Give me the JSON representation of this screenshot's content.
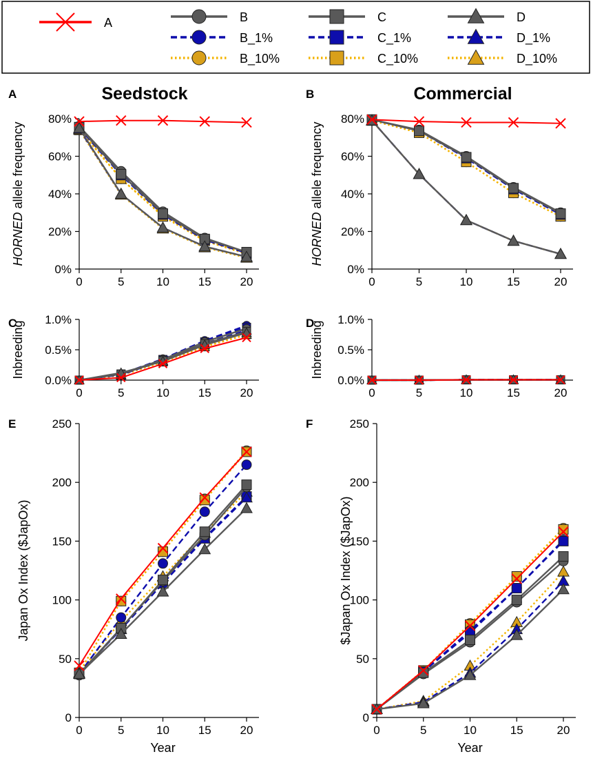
{
  "legend": {
    "entries": [
      {
        "key": "A",
        "label": "A",
        "color": "#ff0000",
        "marker": "x",
        "dash": "solid"
      },
      {
        "key": "B",
        "label": "B",
        "color": "#595959",
        "fill": "#595959",
        "marker": "circle",
        "dash": "solid"
      },
      {
        "key": "C",
        "label": "C",
        "color": "#595959",
        "fill": "#595959",
        "marker": "square",
        "dash": "solid"
      },
      {
        "key": "D",
        "label": "D",
        "color": "#595959",
        "fill": "#595959",
        "marker": "triangle",
        "dash": "solid"
      },
      {
        "key": "B_1%",
        "label": "B_1%",
        "color": "#0d0dac",
        "fill": "#0d0dac",
        "marker": "circle",
        "dash": "dash"
      },
      {
        "key": "C_1%",
        "label": "C_1%",
        "color": "#0d0dac",
        "fill": "#0d0dac",
        "marker": "square",
        "dash": "dash"
      },
      {
        "key": "D_1%",
        "label": "D_1%",
        "color": "#0d0dac",
        "fill": "#0d0dac",
        "marker": "triangle",
        "dash": "dash"
      },
      {
        "key": "B_10%",
        "label": "B_10%",
        "color": "#f4b400",
        "fill": "#d9a01a",
        "marker": "circle",
        "dash": "dot"
      },
      {
        "key": "C_10%",
        "label": "C_10%",
        "color": "#f4b400",
        "fill": "#d9a01a",
        "marker": "square",
        "dash": "dot"
      },
      {
        "key": "D_10%",
        "label": "D_10%",
        "color": "#f4b400",
        "fill": "#d9a01a",
        "marker": "triangle",
        "dash": "dot"
      }
    ]
  },
  "column_titles": [
    "Seedstock",
    "Commercial"
  ],
  "chart_data": [
    {
      "panel": "A",
      "type": "line",
      "xlabel": "",
      "ylabel_italic": "HORNED",
      "ylabel_rest": " allele frequency",
      "x": [
        0,
        5,
        10,
        15,
        20
      ],
      "ylim": [
        0,
        0.8
      ],
      "yticks": [
        0,
        0.2,
        0.4,
        0.6,
        0.8
      ],
      "ytick_labels": [
        "0%",
        "20%",
        "40%",
        "60%",
        "80%"
      ],
      "xtick_labels": [
        "0",
        "5",
        "10",
        "15",
        "20"
      ],
      "series": [
        {
          "name": "B_10%",
          "values": [
            0.745,
            0.48,
            0.285,
            0.15,
            0.085
          ]
        },
        {
          "name": "C_10%",
          "values": [
            0.74,
            0.48,
            0.28,
            0.15,
            0.08
          ]
        },
        {
          "name": "D_10%",
          "values": [
            0.74,
            0.395,
            0.215,
            0.115,
            0.06
          ]
        },
        {
          "name": "B_1%",
          "values": [
            0.755,
            0.51,
            0.3,
            0.16,
            0.09
          ]
        },
        {
          "name": "C_1%",
          "values": [
            0.75,
            0.5,
            0.29,
            0.155,
            0.085
          ]
        },
        {
          "name": "D_1%",
          "values": [
            0.745,
            0.4,
            0.22,
            0.12,
            0.065
          ]
        },
        {
          "name": "B",
          "values": [
            0.76,
            0.52,
            0.305,
            0.165,
            0.09
          ]
        },
        {
          "name": "C",
          "values": [
            0.755,
            0.505,
            0.295,
            0.16,
            0.09
          ]
        },
        {
          "name": "D",
          "values": [
            0.75,
            0.4,
            0.22,
            0.12,
            0.065
          ]
        },
        {
          "name": "A",
          "values": [
            0.785,
            0.79,
            0.79,
            0.785,
            0.78
          ]
        }
      ]
    },
    {
      "panel": "B",
      "type": "line",
      "xlabel": "",
      "ylabel_italic": "HORNED",
      "ylabel_rest": " allele frequency",
      "x": [
        0,
        5,
        10,
        15,
        20
      ],
      "ylim": [
        0,
        0.8
      ],
      "yticks": [
        0,
        0.2,
        0.4,
        0.6,
        0.8
      ],
      "ytick_labels": [
        "0%",
        "20%",
        "40%",
        "60%",
        "80%"
      ],
      "xtick_labels": [
        "0",
        "5",
        "10",
        "15",
        "20"
      ],
      "series": [
        {
          "name": "B_10%",
          "values": [
            0.79,
            0.725,
            0.57,
            0.405,
            0.28
          ]
        },
        {
          "name": "C_10%",
          "values": [
            0.79,
            0.725,
            0.57,
            0.405,
            0.28
          ]
        },
        {
          "name": "D_10%",
          "values": [
            0.79,
            0.505,
            0.26,
            0.15,
            0.08
          ]
        },
        {
          "name": "B_1%",
          "values": [
            0.795,
            0.735,
            0.595,
            0.43,
            0.295
          ]
        },
        {
          "name": "C_1%",
          "values": [
            0.795,
            0.735,
            0.59,
            0.425,
            0.29
          ]
        },
        {
          "name": "D_1%",
          "values": [
            0.79,
            0.505,
            0.26,
            0.15,
            0.08
          ]
        },
        {
          "name": "B",
          "values": [
            0.795,
            0.74,
            0.6,
            0.435,
            0.3
          ]
        },
        {
          "name": "C",
          "values": [
            0.795,
            0.735,
            0.595,
            0.43,
            0.295
          ]
        },
        {
          "name": "D",
          "values": [
            0.79,
            0.505,
            0.26,
            0.15,
            0.08
          ]
        },
        {
          "name": "A",
          "values": [
            0.795,
            0.785,
            0.78,
            0.78,
            0.775
          ]
        }
      ]
    },
    {
      "panel": "C",
      "type": "line",
      "xlabel": "",
      "ylabel": "Inbreeding",
      "x": [
        0,
        5,
        10,
        15,
        20
      ],
      "ylim": [
        0,
        0.01
      ],
      "yticks": [
        0,
        0.005,
        0.01
      ],
      "ytick_labels": [
        "0.0%",
        "0.5%",
        "1.0%"
      ],
      "xtick_labels": [
        "0",
        "5",
        "10",
        "15",
        "20"
      ],
      "series": [
        {
          "name": "B_10%",
          "values": [
            0,
            0.0008,
            0.003,
            0.0055,
            0.0075
          ]
        },
        {
          "name": "C_10%",
          "values": [
            0,
            0.0008,
            0.003,
            0.0055,
            0.0075
          ]
        },
        {
          "name": "D_10%",
          "values": [
            0,
            0.0008,
            0.003,
            0.0055,
            0.0075
          ]
        },
        {
          "name": "B_1%",
          "values": [
            0,
            0.001,
            0.0035,
            0.0065,
            0.009
          ]
        },
        {
          "name": "C_1%",
          "values": [
            0,
            0.001,
            0.0034,
            0.0063,
            0.0087
          ]
        },
        {
          "name": "D_1%",
          "values": [
            0,
            0.0009,
            0.0032,
            0.006,
            0.0082
          ]
        },
        {
          "name": "B",
          "values": [
            0,
            0.001,
            0.0034,
            0.0063,
            0.0085
          ]
        },
        {
          "name": "C",
          "values": [
            0,
            0.001,
            0.0032,
            0.006,
            0.008
          ]
        },
        {
          "name": "D",
          "values": [
            0,
            0.0012,
            0.0031,
            0.0058,
            0.0078
          ]
        },
        {
          "name": "A",
          "values": [
            0,
            0.0004,
            0.0027,
            0.0052,
            0.007
          ]
        }
      ]
    },
    {
      "panel": "D",
      "type": "line",
      "xlabel": "",
      "ylabel": "Inbreeding",
      "x": [
        0,
        5,
        10,
        15,
        20
      ],
      "ylim": [
        0,
        0.01
      ],
      "yticks": [
        0,
        0.005,
        0.01
      ],
      "ytick_labels": [
        "0.0%",
        "0.5%",
        "1.0%"
      ],
      "xtick_labels": [
        "0",
        "5",
        "10",
        "15",
        "20"
      ],
      "series": [
        {
          "name": "B_10%",
          "values": [
            0,
            0,
            5e-05,
            5e-05,
            5e-05
          ]
        },
        {
          "name": "C_10%",
          "values": [
            0,
            0,
            5e-05,
            5e-05,
            5e-05
          ]
        },
        {
          "name": "D_10%",
          "values": [
            0,
            0,
            5e-05,
            5e-05,
            5e-05
          ]
        },
        {
          "name": "B_1%",
          "values": [
            0,
            0,
            5e-05,
            5e-05,
            5e-05
          ]
        },
        {
          "name": "C_1%",
          "values": [
            0,
            0,
            5e-05,
            5e-05,
            5e-05
          ]
        },
        {
          "name": "D_1%",
          "values": [
            0,
            0,
            5e-05,
            5e-05,
            5e-05
          ]
        },
        {
          "name": "B",
          "values": [
            0,
            0,
            5e-05,
            5e-05,
            5e-05
          ]
        },
        {
          "name": "C",
          "values": [
            0,
            0,
            5e-05,
            5e-05,
            5e-05
          ]
        },
        {
          "name": "D",
          "values": [
            0,
            0,
            5e-05,
            5e-05,
            5e-05
          ]
        },
        {
          "name": "A",
          "values": [
            0,
            0,
            5e-05,
            5e-05,
            5e-05
          ]
        }
      ]
    },
    {
      "panel": "E",
      "type": "line",
      "xlabel": "Year",
      "ylabel": "Japan Ox Index ($JapOx)",
      "x": [
        0,
        5,
        10,
        15,
        20
      ],
      "ylim": [
        0,
        250
      ],
      "yticks": [
        0,
        50,
        100,
        150,
        200,
        250
      ],
      "ytick_labels": [
        "0",
        "50",
        "100",
        "150",
        "200",
        "250"
      ],
      "xtick_labels": [
        "0",
        "5",
        "10",
        "15",
        "20"
      ],
      "series": [
        {
          "name": "B_10%",
          "values": [
            38,
            99,
            141,
            186,
            227
          ]
        },
        {
          "name": "C_10%",
          "values": [
            38,
            99,
            141,
            185,
            226
          ]
        },
        {
          "name": "D_10%",
          "values": [
            38,
            82,
            120,
            157,
            192
          ]
        },
        {
          "name": "B_1%",
          "values": [
            37,
            85,
            131,
            175,
            215
          ]
        },
        {
          "name": "C_1%",
          "values": [
            37,
            76,
            114,
            153,
            188
          ]
        },
        {
          "name": "D_1%",
          "values": [
            37,
            75,
            114,
            152,
            187
          ]
        },
        {
          "name": "B",
          "values": [
            36,
            76,
            116,
            155,
            196
          ]
        },
        {
          "name": "C",
          "values": [
            37,
            76,
            117,
            158,
            198
          ]
        },
        {
          "name": "D",
          "values": [
            37,
            71,
            107,
            143,
            178
          ]
        },
        {
          "name": "A",
          "values": [
            44,
            101,
            144,
            187,
            226
          ]
        }
      ]
    },
    {
      "panel": "F",
      "type": "line",
      "xlabel": "Year",
      "ylabel": "$Japan Ox Index ($JapOx)",
      "x": [
        0,
        5,
        10,
        15,
        20
      ],
      "ylim": [
        0,
        250
      ],
      "yticks": [
        0,
        50,
        100,
        150,
        200,
        250
      ],
      "ytick_labels": [
        "0",
        "50",
        "100",
        "150",
        "200",
        "250"
      ],
      "xtick_labels": [
        "0",
        "5",
        "10",
        "15",
        "20"
      ],
      "series": [
        {
          "name": "B_10%",
          "values": [
            7,
            40,
            80,
            120,
            161
          ]
        },
        {
          "name": "C_10%",
          "values": [
            7,
            40,
            79,
            120,
            160
          ]
        },
        {
          "name": "D_10%",
          "values": [
            7,
            14,
            44,
            81,
            124
          ]
        },
        {
          "name": "B_1%",
          "values": [
            7,
            39,
            74,
            110,
            151
          ]
        },
        {
          "name": "C_1%",
          "values": [
            7,
            39,
            72,
            110,
            150
          ]
        },
        {
          "name": "D_1%",
          "values": [
            7,
            13,
            38,
            75,
            116
          ]
        },
        {
          "name": "B",
          "values": [
            7,
            37,
            64,
            98,
            133
          ]
        },
        {
          "name": "C",
          "values": [
            7,
            38,
            66,
            100,
            137
          ]
        },
        {
          "name": "D",
          "values": [
            7,
            12,
            36,
            70,
            109
          ]
        },
        {
          "name": "A",
          "values": [
            7,
            40,
            78,
            118,
            158
          ]
        }
      ]
    }
  ]
}
